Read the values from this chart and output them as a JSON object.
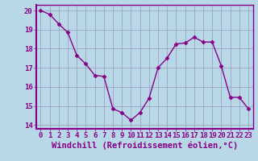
{
  "x": [
    0,
    1,
    2,
    3,
    4,
    5,
    6,
    7,
    8,
    9,
    10,
    11,
    12,
    13,
    14,
    15,
    16,
    17,
    18,
    19,
    20,
    21,
    22,
    23
  ],
  "y": [
    20.0,
    19.8,
    19.3,
    18.85,
    17.65,
    17.2,
    16.6,
    16.55,
    14.85,
    14.65,
    14.25,
    14.65,
    15.4,
    17.0,
    17.5,
    18.25,
    18.3,
    18.6,
    18.35,
    18.35,
    17.1,
    15.45,
    15.45,
    14.85
  ],
  "xlim": [
    -0.5,
    23.5
  ],
  "ylim": [
    13.8,
    20.3
  ],
  "yticks": [
    14,
    15,
    16,
    17,
    18,
    19,
    20
  ],
  "xticks": [
    0,
    1,
    2,
    3,
    4,
    5,
    6,
    7,
    8,
    9,
    10,
    11,
    12,
    13,
    14,
    15,
    16,
    17,
    18,
    19,
    20,
    21,
    22,
    23
  ],
  "xlabel": "Windchill (Refroidissement éolien,°C)",
  "line_color": "#880088",
  "marker": "D",
  "marker_size": 2.5,
  "line_width": 1.0,
  "bg_color": "#b8d8e8",
  "grid_color": "#9999bb",
  "tick_label_fontsize": 6.5,
  "xlabel_fontsize": 7.5,
  "title": ""
}
